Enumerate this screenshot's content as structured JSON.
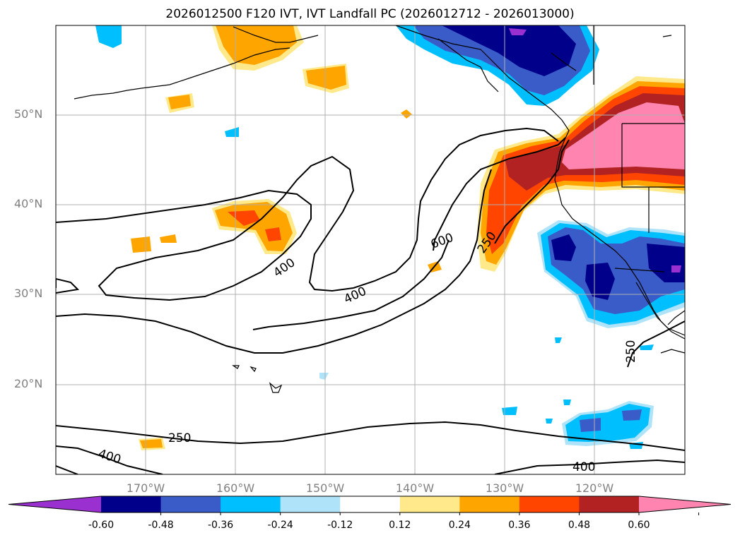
{
  "title": "2026012500 F120 IVT, IVT Landfall PC (2026012712 - 2026013000)",
  "lat_labels": [
    "50°N",
    "40°N",
    "30°N",
    "20°N"
  ],
  "lon_labels": [
    "170°W",
    "160°W",
    "150°W",
    "140°W",
    "130°W",
    "120°W"
  ],
  "contour_labels": [
    "400",
    "400",
    "600",
    "250",
    "250",
    "400",
    "250",
    "400"
  ],
  "colorbar": {
    "tick_labels": [
      "-0.60",
      "-0.48",
      "-0.36",
      "-0.24",
      "-0.12",
      "0.12",
      "0.24",
      "0.36",
      "0.48",
      "0.60"
    ],
    "colors": [
      "#9b30d0",
      "#00008b",
      "#3a5cc8",
      "#00bfff",
      "#aee3fa",
      "#ffffff",
      "#ffe98a",
      "#ffa500",
      "#ff4500",
      "#b22222",
      "#ff85b0"
    ]
  }
}
